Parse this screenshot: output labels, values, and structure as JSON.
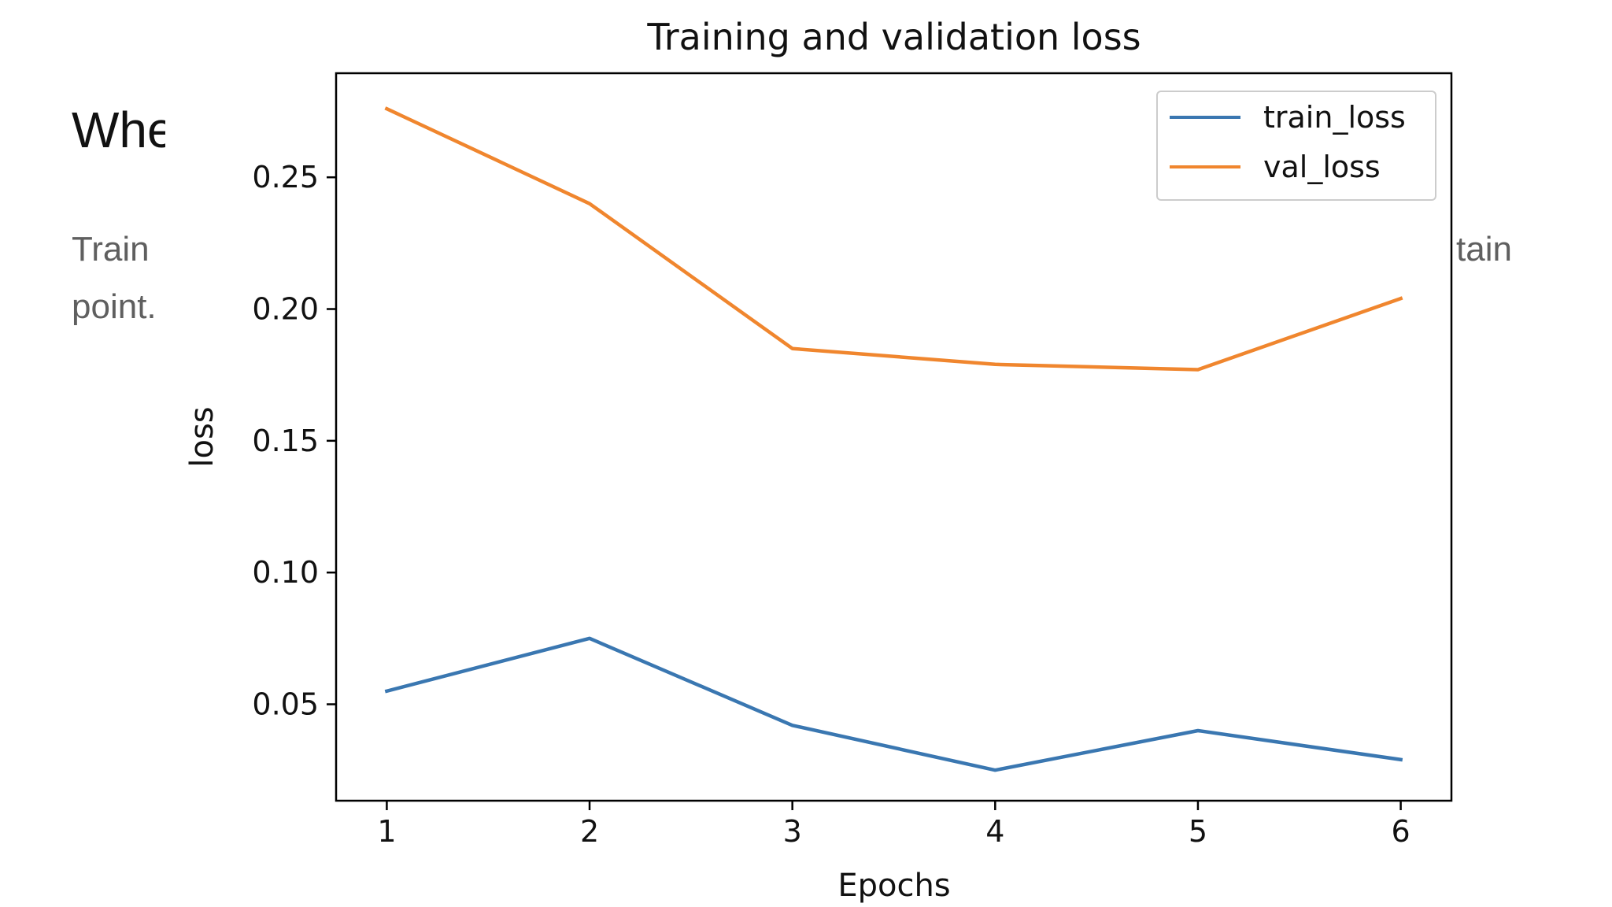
{
  "background": {
    "heading_fragment": "Whe",
    "paragraph_line1_fragment": "Train",
    "paragraph_line2_fragment": "point.",
    "paragraph_right_fragment": "tain"
  },
  "chart_data": {
    "type": "line",
    "title": "Training and validation loss",
    "xlabel": "Epochs",
    "ylabel": "loss",
    "x": [
      1,
      2,
      3,
      4,
      5,
      6
    ],
    "xticks": [
      "1",
      "2",
      "3",
      "4",
      "5",
      "6"
    ],
    "yticks": [
      "0.05",
      "0.10",
      "0.15",
      "0.20",
      "0.25"
    ],
    "ytick_values": [
      0.05,
      0.1,
      0.15,
      0.2,
      0.25
    ],
    "xlim": [
      0.75,
      6.25
    ],
    "ylim": [
      0.0134,
      0.2895
    ],
    "grid": false,
    "legend_position": "top-right",
    "series": [
      {
        "name": "train_loss",
        "color": "#3a77b1",
        "values": [
          0.055,
          0.075,
          0.042,
          0.025,
          0.04,
          0.029
        ]
      },
      {
        "name": "val_loss",
        "color": "#f0862e",
        "values": [
          0.276,
          0.24,
          0.185,
          0.179,
          0.177,
          0.204
        ]
      }
    ]
  }
}
